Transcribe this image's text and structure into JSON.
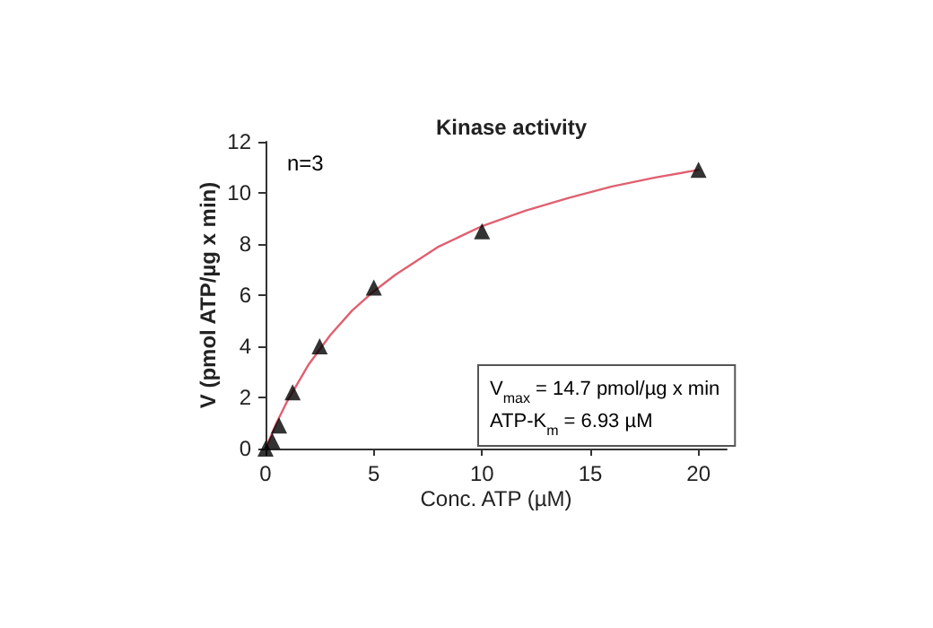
{
  "chart_data": {
    "type": "scatter",
    "title": "Kinase activity",
    "xlabel": "Conc. ATP (µM)",
    "ylabel": "V (pmol ATP/µg x min)",
    "annotations": [
      "n=3",
      "V$_{max}$ = 14.7 pmol/µg x min",
      "ATP-K$_{m}$ = 6.93 µM"
    ],
    "xlim": [
      0,
      21.3
    ],
    "xticks": [
      0,
      5,
      10,
      15,
      20
    ],
    "ylim": [
      0,
      12
    ],
    "yticks": [
      0,
      2,
      4,
      6,
      8,
      10,
      12
    ],
    "grid": false,
    "series": [
      {
        "type": "line",
        "color": "#e06070",
        "marker": "none",
        "x": [
          0,
          0.5,
          1,
          2,
          3,
          4,
          5,
          6,
          8,
          10,
          12,
          14,
          16,
          18,
          20
        ],
        "values": [
          0,
          0.99,
          1.85,
          3.3,
          4.45,
          5.4,
          6.15,
          6.8,
          7.9,
          8.7,
          9.3,
          9.8,
          10.25,
          10.6,
          10.9
        ]
      },
      {
        "color": "#000000",
        "marker": "triangle",
        "x": [
          0,
          0.3125,
          0.625,
          1.25,
          2.5,
          5,
          10,
          20
        ],
        "values": [
          0,
          0.3,
          0.9,
          2.2,
          4.0,
          6.3,
          8.5,
          10.9
        ]
      }
    ]
  }
}
